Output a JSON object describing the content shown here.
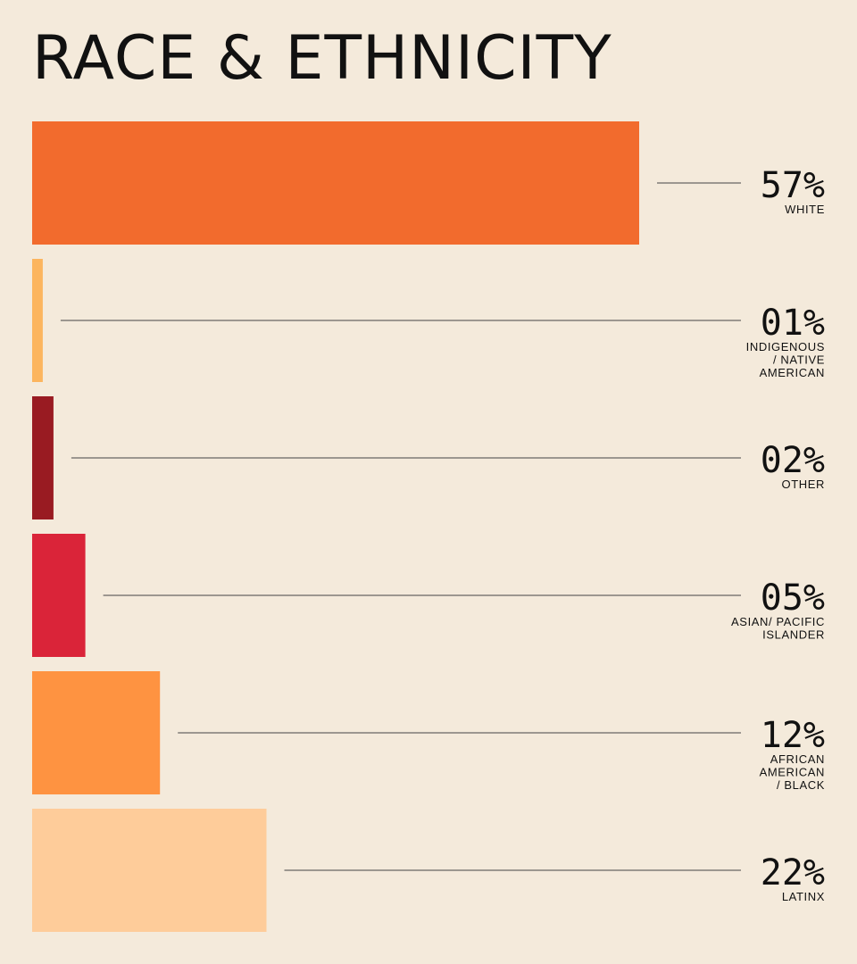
{
  "chart_data": {
    "type": "bar",
    "orientation": "horizontal",
    "title": "RACE & ETHNICITY",
    "unit": "%",
    "xlim": [
      0,
      57
    ],
    "categories": [
      {
        "label_lines": [
          "WHITE"
        ],
        "value_label": "57%",
        "value": 57,
        "color": "#f26b2d"
      },
      {
        "label_lines": [
          "INDIGENOUS",
          "/ NATIVE",
          "AMERICAN"
        ],
        "value_label": "01%",
        "value": 1,
        "color": "#fcb55e"
      },
      {
        "label_lines": [
          "OTHER"
        ],
        "value_label": "02%",
        "value": 2,
        "color": "#991b22"
      },
      {
        "label_lines": [
          "ASIAN/ PACIFIC",
          "ISLANDER"
        ],
        "value_label": "05%",
        "value": 5,
        "color": "#da2439"
      },
      {
        "label_lines": [
          "AFRICAN",
          "AMERICAN",
          "/ BLACK"
        ],
        "value_label": "12%",
        "value": 12,
        "color": "#fe9341"
      },
      {
        "label_lines": [
          "LATINX"
        ],
        "value_label": "22%",
        "value": 22,
        "color": "#fecc9a"
      }
    ]
  }
}
